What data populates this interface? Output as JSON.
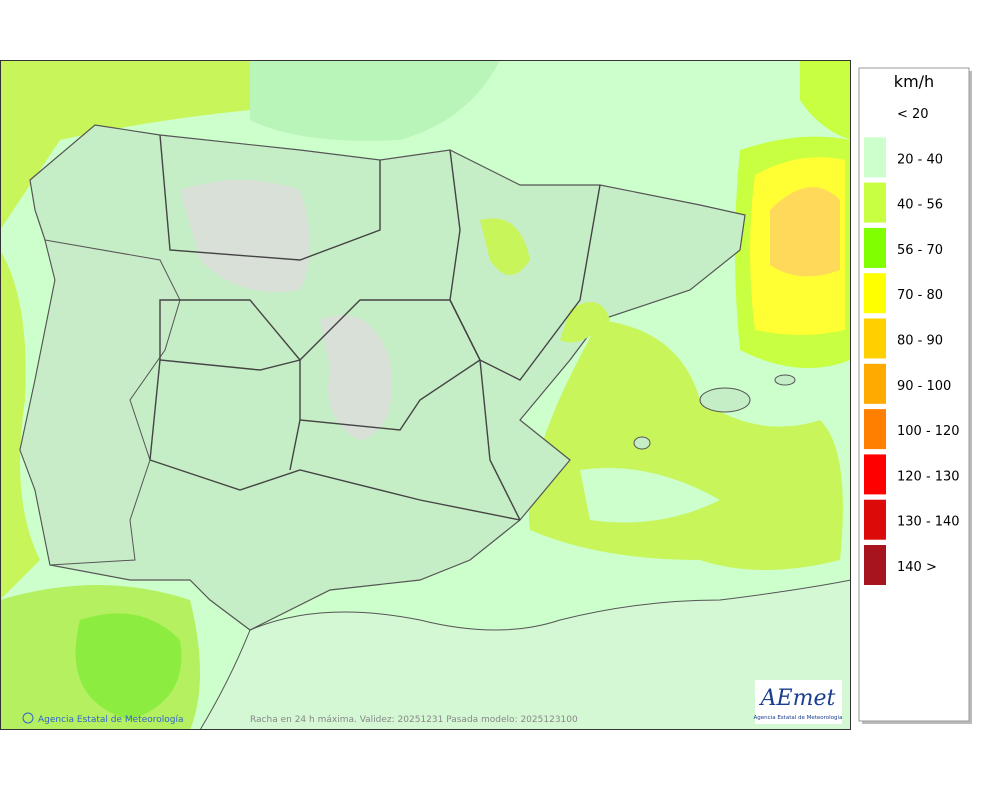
{
  "map": {
    "credit": "Agencia Estatal de Meteorología",
    "caption": "Racha en 24 h máxima. Validez: 20251231 Pasada modelo: 2025123100",
    "logo": {
      "name": "AEmet",
      "subtitle": "Agencia Estatal de Meteorología"
    }
  },
  "legend": {
    "unit": "km/h",
    "entries": [
      {
        "label": "< 20"
      },
      {
        "label": "20 - 40",
        "color": "#ccffcc"
      },
      {
        "label": "40 - 56",
        "color": "#c8ff40"
      },
      {
        "label": "56 - 70",
        "color": "#80ff00"
      },
      {
        "label": "70 - 80",
        "color": "#ffff00"
      },
      {
        "label": "80 - 90",
        "color": "#ffd000"
      },
      {
        "label": "90 - 100",
        "color": "#ffaa00"
      },
      {
        "label": "100 - 120",
        "color": "#ff8000"
      },
      {
        "label": "120 - 130",
        "color": "#ff0000"
      },
      {
        "label": "130 - 140",
        "color": "#dd0a0a"
      },
      {
        "label": "140 >",
        "color": "#a8141e"
      }
    ]
  }
}
